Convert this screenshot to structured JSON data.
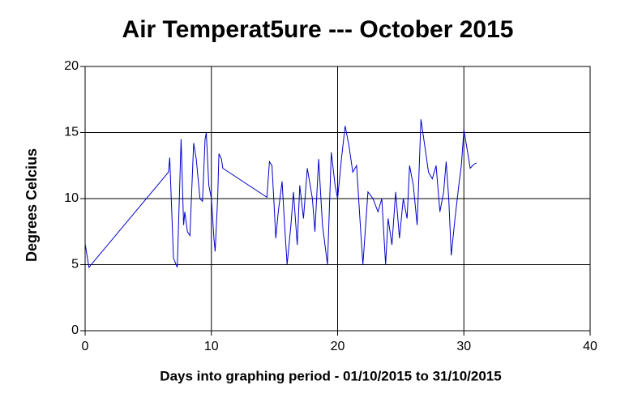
{
  "chart_data": {
    "type": "line",
    "title": "Air Temperat5ure --- October 2015",
    "x_label": "Days into graphing period - 01/10/2015 to 31/10/2015",
    "y_label": "Degrees Celcius",
    "color": "#0000cc",
    "grid": true,
    "xlim": [
      0,
      40
    ],
    "xticks": [
      0,
      10,
      20,
      30,
      40
    ],
    "ylim": [
      0,
      20
    ],
    "yticks": [
      0,
      5,
      10,
      15,
      20
    ],
    "x": [
      0,
      0.3,
      6.6,
      6.7,
      7.0,
      7.3,
      7.6,
      7.8,
      7.9,
      8.1,
      8.3,
      8.6,
      8.8,
      9.1,
      9.3,
      9.5,
      9.6,
      9.8,
      10.0,
      10.2,
      10.3,
      10.5,
      10.6,
      10.8,
      10.9,
      14.4,
      14.6,
      14.8,
      15.0,
      15.1,
      15.3,
      15.6,
      15.8,
      16.0,
      16.3,
      16.5,
      16.8,
      17.0,
      17.3,
      17.6,
      18.0,
      18.2,
      18.5,
      18.8,
      19.2,
      19.5,
      19.8,
      20.0,
      20.3,
      20.6,
      20.9,
      21.2,
      21.5,
      21.8,
      22.0,
      22.4,
      22.8,
      23.2,
      23.5,
      23.8,
      24.0,
      24.3,
      24.6,
      24.9,
      25.2,
      25.5,
      25.7,
      26.0,
      26.3,
      26.6,
      26.9,
      27.2,
      27.5,
      27.8,
      28.1,
      28.4,
      28.6,
      28.8,
      29.0,
      29.3,
      29.6,
      29.8,
      30.0,
      30.3,
      30.5,
      30.8,
      31.0
    ],
    "values": [
      6.6,
      4.8,
      12.0,
      13.1,
      5.5,
      4.8,
      14.5,
      8.0,
      9.0,
      7.5,
      7.2,
      14.2,
      13.0,
      10.0,
      9.8,
      14.5,
      15.0,
      11.0,
      10.0,
      7.0,
      6.0,
      10.0,
      13.4,
      13.0,
      12.3,
      10.1,
      12.8,
      12.5,
      9.0,
      7.0,
      9.0,
      11.3,
      8.0,
      5.0,
      8.0,
      10.5,
      6.5,
      11.0,
      8.5,
      12.3,
      10.0,
      7.5,
      13.0,
      8.0,
      5.0,
      13.5,
      11.0,
      10.0,
      13.0,
      15.5,
      14.0,
      12.0,
      12.5,
      8.0,
      5.0,
      10.5,
      10.0,
      9.0,
      10.0,
      5.0,
      8.5,
      6.5,
      10.5,
      7.0,
      10.0,
      8.5,
      12.5,
      11.0,
      8.0,
      16.0,
      14.0,
      12.0,
      11.5,
      12.5,
      9.0,
      10.5,
      12.8,
      10.0,
      5.7,
      8.5,
      11.0,
      12.5,
      15.2,
      13.5,
      12.3,
      12.6,
      12.7
    ]
  }
}
